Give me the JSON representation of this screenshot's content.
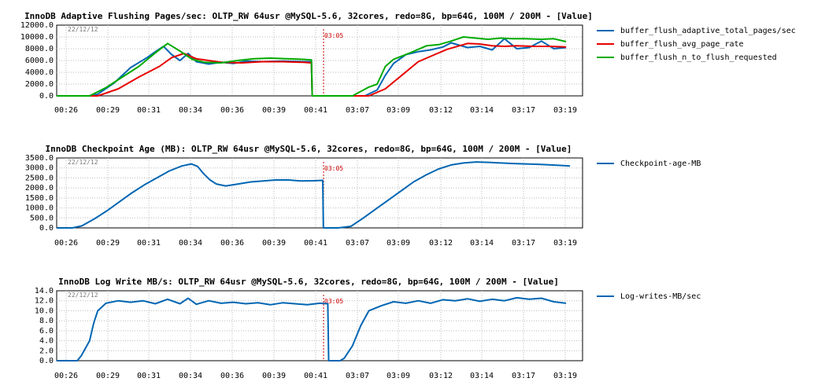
{
  "chart_data": [
    {
      "type": "line",
      "title": "InnoDB Adaptive Flushing Pages/sec: OLTP_RW 64usr @MySQL-5.6, 32cores, redo=8G, bp=64G, 100M / 200M - [Value]",
      "date_label": "22/12/12",
      "marker_label": "03:05",
      "y_tick_labels": [
        "12000.0",
        "10000.0",
        "8000.0",
        "6000.0",
        "4000.0",
        "2000.0",
        "0.0"
      ],
      "x_tick_labels": [
        "00:26",
        "00:29",
        "00:31",
        "00:34",
        "00:36",
        "00:39",
        "00:41",
        "03:07",
        "03:09",
        "03:12",
        "03:14",
        "03:17",
        "03:19"
      ],
      "ylim": [
        0,
        12000
      ],
      "grid": true,
      "legend_position": "right",
      "series": [
        {
          "name": "buffer_flush_adaptive_total_pages/sec",
          "color": "#0066b3",
          "points": [
            [
              0,
              0
            ],
            [
              0.8,
              0
            ],
            [
              1,
              300
            ],
            [
              1.4,
              2200
            ],
            [
              1.8,
              4800
            ],
            [
              2.2,
              6500
            ],
            [
              2.4,
              7500
            ],
            [
              2.6,
              8400
            ],
            [
              2.8,
              7000
            ],
            [
              3.0,
              6000
            ],
            [
              3.2,
              7200
            ],
            [
              3.4,
              5800
            ],
            [
              3.7,
              5400
            ],
            [
              4.0,
              5700
            ],
            [
              4.3,
              5500
            ],
            [
              4.6,
              5900
            ],
            [
              5.0,
              5800
            ],
            [
              5.5,
              5900
            ],
            [
              6.0,
              5800
            ],
            [
              6.2,
              5800
            ],
            [
              6.22,
              0
            ],
            [
              7.0,
              0
            ],
            [
              7.5,
              0
            ],
            [
              7.8,
              1000
            ],
            [
              8.0,
              3500
            ],
            [
              8.2,
              5500
            ],
            [
              8.5,
              7000
            ],
            [
              8.8,
              7500
            ],
            [
              9.1,
              7800
            ],
            [
              9.4,
              8300
            ],
            [
              9.6,
              9000
            ],
            [
              9.8,
              8600
            ],
            [
              10.0,
              8200
            ],
            [
              10.3,
              8400
            ],
            [
              10.6,
              7800
            ],
            [
              10.9,
              9700
            ],
            [
              11.2,
              8000
            ],
            [
              11.5,
              8200
            ],
            [
              11.8,
              9300
            ],
            [
              12.1,
              8000
            ],
            [
              12.4,
              8200
            ]
          ]
        },
        {
          "name": "buffer_flush_avg_page_rate",
          "color": "#e60000",
          "points": [
            [
              0,
              0
            ],
            [
              1,
              0
            ],
            [
              1.5,
              1200
            ],
            [
              2.0,
              3200
            ],
            [
              2.5,
              5000
            ],
            [
              2.8,
              6500
            ],
            [
              3.1,
              7200
            ],
            [
              3.4,
              6300
            ],
            [
              3.7,
              6000
            ],
            [
              4.0,
              5700
            ],
            [
              4.5,
              5600
            ],
            [
              5.0,
              5800
            ],
            [
              5.5,
              5800
            ],
            [
              6.0,
              5700
            ],
            [
              6.2,
              5600
            ],
            [
              6.22,
              0
            ],
            [
              7.6,
              0
            ],
            [
              8.0,
              1200
            ],
            [
              8.4,
              3500
            ],
            [
              8.8,
              5800
            ],
            [
              9.2,
              7000
            ],
            [
              9.5,
              7900
            ],
            [
              9.8,
              8500
            ],
            [
              10.0,
              8900
            ],
            [
              10.3,
              8800
            ],
            [
              10.6,
              8500
            ],
            [
              10.9,
              8400
            ],
            [
              11.2,
              8500
            ],
            [
              11.6,
              8400
            ],
            [
              12.0,
              8400
            ],
            [
              12.4,
              8300
            ]
          ]
        },
        {
          "name": "buffer_flush_n_to_flush_requested",
          "color": "#00aa00",
          "points": [
            [
              0,
              0
            ],
            [
              0.8,
              0
            ],
            [
              1.2,
              1400
            ],
            [
              1.6,
              3200
            ],
            [
              2.0,
              5000
            ],
            [
              2.4,
              7300
            ],
            [
              2.7,
              8900
            ],
            [
              3.0,
              7600
            ],
            [
              3.3,
              6200
            ],
            [
              3.6,
              5700
            ],
            [
              4.0,
              5600
            ],
            [
              4.4,
              6000
            ],
            [
              4.8,
              6300
            ],
            [
              5.2,
              6400
            ],
            [
              5.6,
              6300
            ],
            [
              6.0,
              6200
            ],
            [
              6.2,
              6100
            ],
            [
              6.22,
              0
            ],
            [
              7.2,
              0
            ],
            [
              7.6,
              1500
            ],
            [
              7.8,
              2000
            ],
            [
              8.0,
              5000
            ],
            [
              8.2,
              6200
            ],
            [
              8.6,
              7300
            ],
            [
              9.0,
              8500
            ],
            [
              9.3,
              8700
            ],
            [
              9.6,
              9300
            ],
            [
              9.9,
              10000
            ],
            [
              10.2,
              9800
            ],
            [
              10.5,
              9600
            ],
            [
              10.8,
              9800
            ],
            [
              11.1,
              9700
            ],
            [
              11.4,
              9700
            ],
            [
              11.8,
              9600
            ],
            [
              12.1,
              9700
            ],
            [
              12.4,
              9200
            ]
          ]
        }
      ]
    },
    {
      "type": "line",
      "title": "InnoDB Checkpoint Age (MB): OLTP_RW 64usr @MySQL-5.6, 32cores, redo=8G, bp=64G, 100M / 200M - [Value]",
      "date_label": "22/12/12",
      "marker_label": "03:05",
      "y_tick_labels": [
        "3500.0",
        "3000.0",
        "2500.0",
        "2000.0",
        "1500.0",
        "1000.0",
        "500.0",
        "0.0"
      ],
      "x_tick_labels": [
        "00:26",
        "00:29",
        "00:31",
        "00:34",
        "00:36",
        "00:39",
        "00:41",
        "03:07",
        "03:09",
        "03:12",
        "03:14",
        "03:17",
        "03:19"
      ],
      "ylim": [
        0,
        3500
      ],
      "grid": true,
      "legend_position": "right",
      "series": [
        {
          "name": "Checkpoint-age-MB",
          "color": "#0066b3",
          "points": [
            [
              0,
              0
            ],
            [
              0.5,
              0
            ],
            [
              0.8,
              100
            ],
            [
              1.2,
              450
            ],
            [
              1.6,
              850
            ],
            [
              2.0,
              1300
            ],
            [
              2.4,
              1750
            ],
            [
              2.8,
              2150
            ],
            [
              3.2,
              2500
            ],
            [
              3.6,
              2850
            ],
            [
              4.0,
              3100
            ],
            [
              4.3,
              3200
            ],
            [
              4.5,
              3080
            ],
            [
              4.7,
              2700
            ],
            [
              4.9,
              2400
            ],
            [
              5.1,
              2200
            ],
            [
              5.4,
              2100
            ],
            [
              5.8,
              2200
            ],
            [
              6.2,
              2300
            ],
            [
              6.6,
              2350
            ],
            [
              7.0,
              2400
            ],
            [
              7.4,
              2400
            ],
            [
              7.8,
              2350
            ],
            [
              8.2,
              2360
            ],
            [
              8.5,
              2380
            ],
            [
              8.52,
              0
            ],
            [
              9.0,
              0
            ],
            [
              9.4,
              80
            ],
            [
              9.8,
              500
            ],
            [
              10.2,
              950
            ],
            [
              10.6,
              1400
            ],
            [
              11.0,
              1850
            ],
            [
              11.4,
              2300
            ],
            [
              11.8,
              2650
            ],
            [
              12.2,
              2950
            ],
            [
              12.6,
              3150
            ],
            [
              13.0,
              3250
            ],
            [
              13.4,
              3300
            ],
            [
              13.8,
              3280
            ],
            [
              14.2,
              3250
            ],
            [
              14.6,
              3220
            ],
            [
              15.0,
              3200
            ],
            [
              15.4,
              3180
            ],
            [
              15.8,
              3150
            ],
            [
              16.2,
              3120
            ],
            [
              16.4,
              3100
            ]
          ]
        }
      ]
    },
    {
      "type": "line",
      "title": "InnoDB Log Write MB/s: OLTP_RW 64usr @MySQL-5.6, 32cores, redo=8G, bp=64G, 100M / 200M - [Value]",
      "date_label": "22/12/12",
      "marker_label": "03:05",
      "y_tick_labels": [
        "14.0",
        "12.0",
        "10.0",
        "8.0",
        "6.0",
        "4.0",
        "2.0",
        "0.0"
      ],
      "x_tick_labels": [
        "00:26",
        "00:29",
        "00:31",
        "00:34",
        "00:36",
        "00:39",
        "00:41",
        "03:07",
        "03:09",
        "03:12",
        "03:14",
        "03:17",
        "03:19"
      ],
      "ylim": [
        0,
        14
      ],
      "grid": true,
      "legend_position": "right",
      "series": [
        {
          "name": "Log-writes-MB/sec",
          "color": "#0066b3",
          "points": [
            [
              0,
              0
            ],
            [
              0.5,
              0
            ],
            [
              0.6,
              1.0
            ],
            [
              0.8,
              4.0
            ],
            [
              0.9,
              7.5
            ],
            [
              1.0,
              10.0
            ],
            [
              1.2,
              11.5
            ],
            [
              1.5,
              12.0
            ],
            [
              1.8,
              11.7
            ],
            [
              2.1,
              12.0
            ],
            [
              2.4,
              11.4
            ],
            [
              2.7,
              12.3
            ],
            [
              3.0,
              11.4
            ],
            [
              3.2,
              12.5
            ],
            [
              3.4,
              11.3
            ],
            [
              3.7,
              12.0
            ],
            [
              4.0,
              11.5
            ],
            [
              4.3,
              11.7
            ],
            [
              4.6,
              11.4
            ],
            [
              4.9,
              11.6
            ],
            [
              5.2,
              11.2
            ],
            [
              5.5,
              11.6
            ],
            [
              5.8,
              11.4
            ],
            [
              6.1,
              11.2
            ],
            [
              6.4,
              11.5
            ],
            [
              6.6,
              11.4
            ],
            [
              6.62,
              0
            ],
            [
              6.9,
              0
            ],
            [
              7.0,
              0.5
            ],
            [
              7.2,
              3.0
            ],
            [
              7.4,
              7.0
            ],
            [
              7.6,
              10.0
            ],
            [
              7.9,
              11.0
            ],
            [
              8.2,
              11.8
            ],
            [
              8.5,
              11.5
            ],
            [
              8.8,
              12.0
            ],
            [
              9.1,
              11.5
            ],
            [
              9.4,
              12.2
            ],
            [
              9.7,
              12.0
            ],
            [
              10.0,
              12.4
            ],
            [
              10.3,
              11.9
            ],
            [
              10.6,
              12.3
            ],
            [
              10.9,
              12.0
            ],
            [
              11.2,
              12.6
            ],
            [
              11.5,
              12.3
            ],
            [
              11.8,
              12.5
            ],
            [
              12.1,
              11.8
            ],
            [
              12.4,
              11.5
            ]
          ]
        }
      ]
    }
  ]
}
